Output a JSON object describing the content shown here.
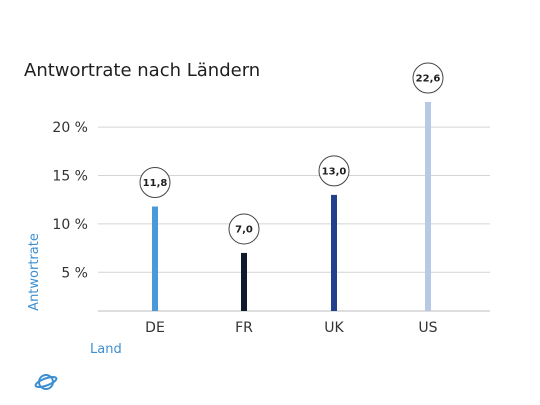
{
  "chart_data": {
    "type": "bar",
    "title": "Antwortrate nach Ländern",
    "xlabel": "Land",
    "ylabel": "Antwortrate",
    "categories": [
      "DE",
      "FR",
      "UK",
      "US"
    ],
    "values": [
      11.8,
      7.0,
      13.0,
      22.6
    ],
    "data_labels": [
      "11,8",
      "7,0",
      "13,0",
      "22,6"
    ],
    "yticks": [
      5,
      10,
      15,
      20
    ],
    "ytick_labels": [
      "5 %",
      "10 %",
      "15 %",
      "20 %"
    ],
    "ylim": [
      1,
      22.6
    ],
    "grid": true,
    "legend": "none",
    "bar_colors": [
      "#4a9ad9",
      "#0f1b2d",
      "#23408f",
      "#b8c9e6"
    ],
    "label_colors": {
      "axis_title": "#3d8fd1",
      "grid": "#d4d4d4"
    }
  },
  "logo": {
    "name": "planet-icon",
    "color": "#3d8fd1"
  }
}
